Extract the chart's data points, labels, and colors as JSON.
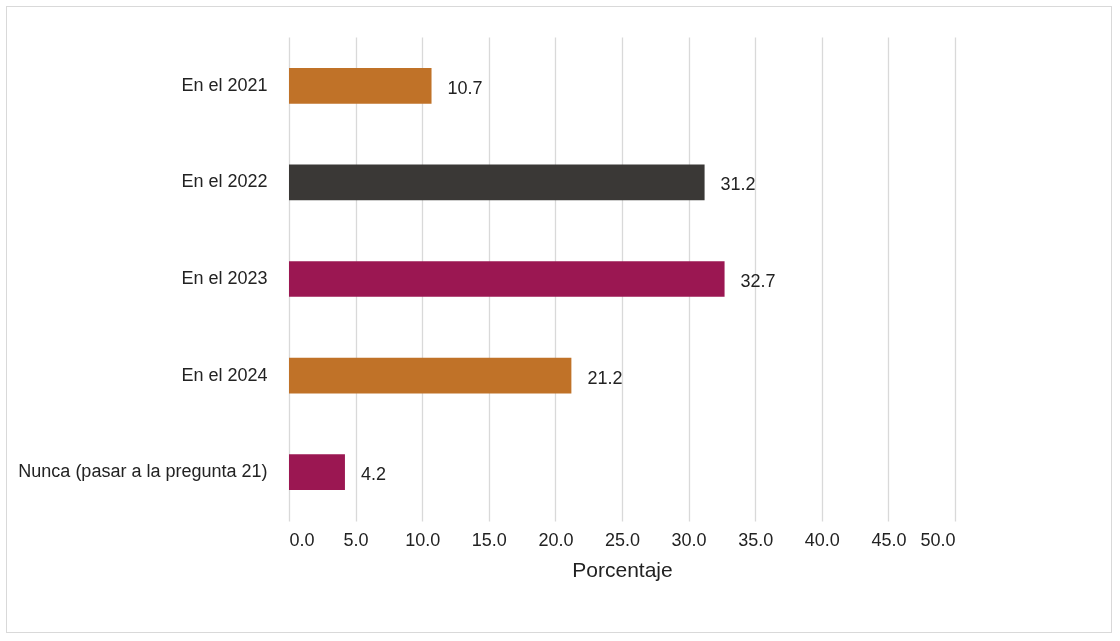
{
  "chart_data": {
    "type": "bar",
    "orientation": "horizontal",
    "categories": [
      "En el 2021",
      "En el 2022",
      "En el 2023",
      "En el 2024",
      "Nunca (pasar a la pregunta 21)"
    ],
    "values": [
      10.7,
      31.2,
      32.7,
      21.2,
      4.2
    ],
    "colors": [
      "#c07228",
      "#3a3836",
      "#9b1752",
      "#c07228",
      "#9b1752"
    ],
    "xlabel": "Porcentaje",
    "xlim": [
      0,
      50
    ],
    "xticks": [
      {
        "value": 0,
        "label": "0.0"
      },
      {
        "value": 5,
        "label": "5.0"
      },
      {
        "value": 10,
        "label": "10.0"
      },
      {
        "value": 15,
        "label": "15.0"
      },
      {
        "value": 20,
        "label": "20.0"
      },
      {
        "value": 25,
        "label": "25.0"
      },
      {
        "value": 30,
        "label": "30.0"
      },
      {
        "value": 35,
        "label": "35.0"
      },
      {
        "value": 40,
        "label": "40.0"
      },
      {
        "value": 45,
        "label": "45.0"
      },
      {
        "value": 50,
        "label": "50.0"
      }
    ],
    "grid": "x",
    "data_labels": true
  }
}
